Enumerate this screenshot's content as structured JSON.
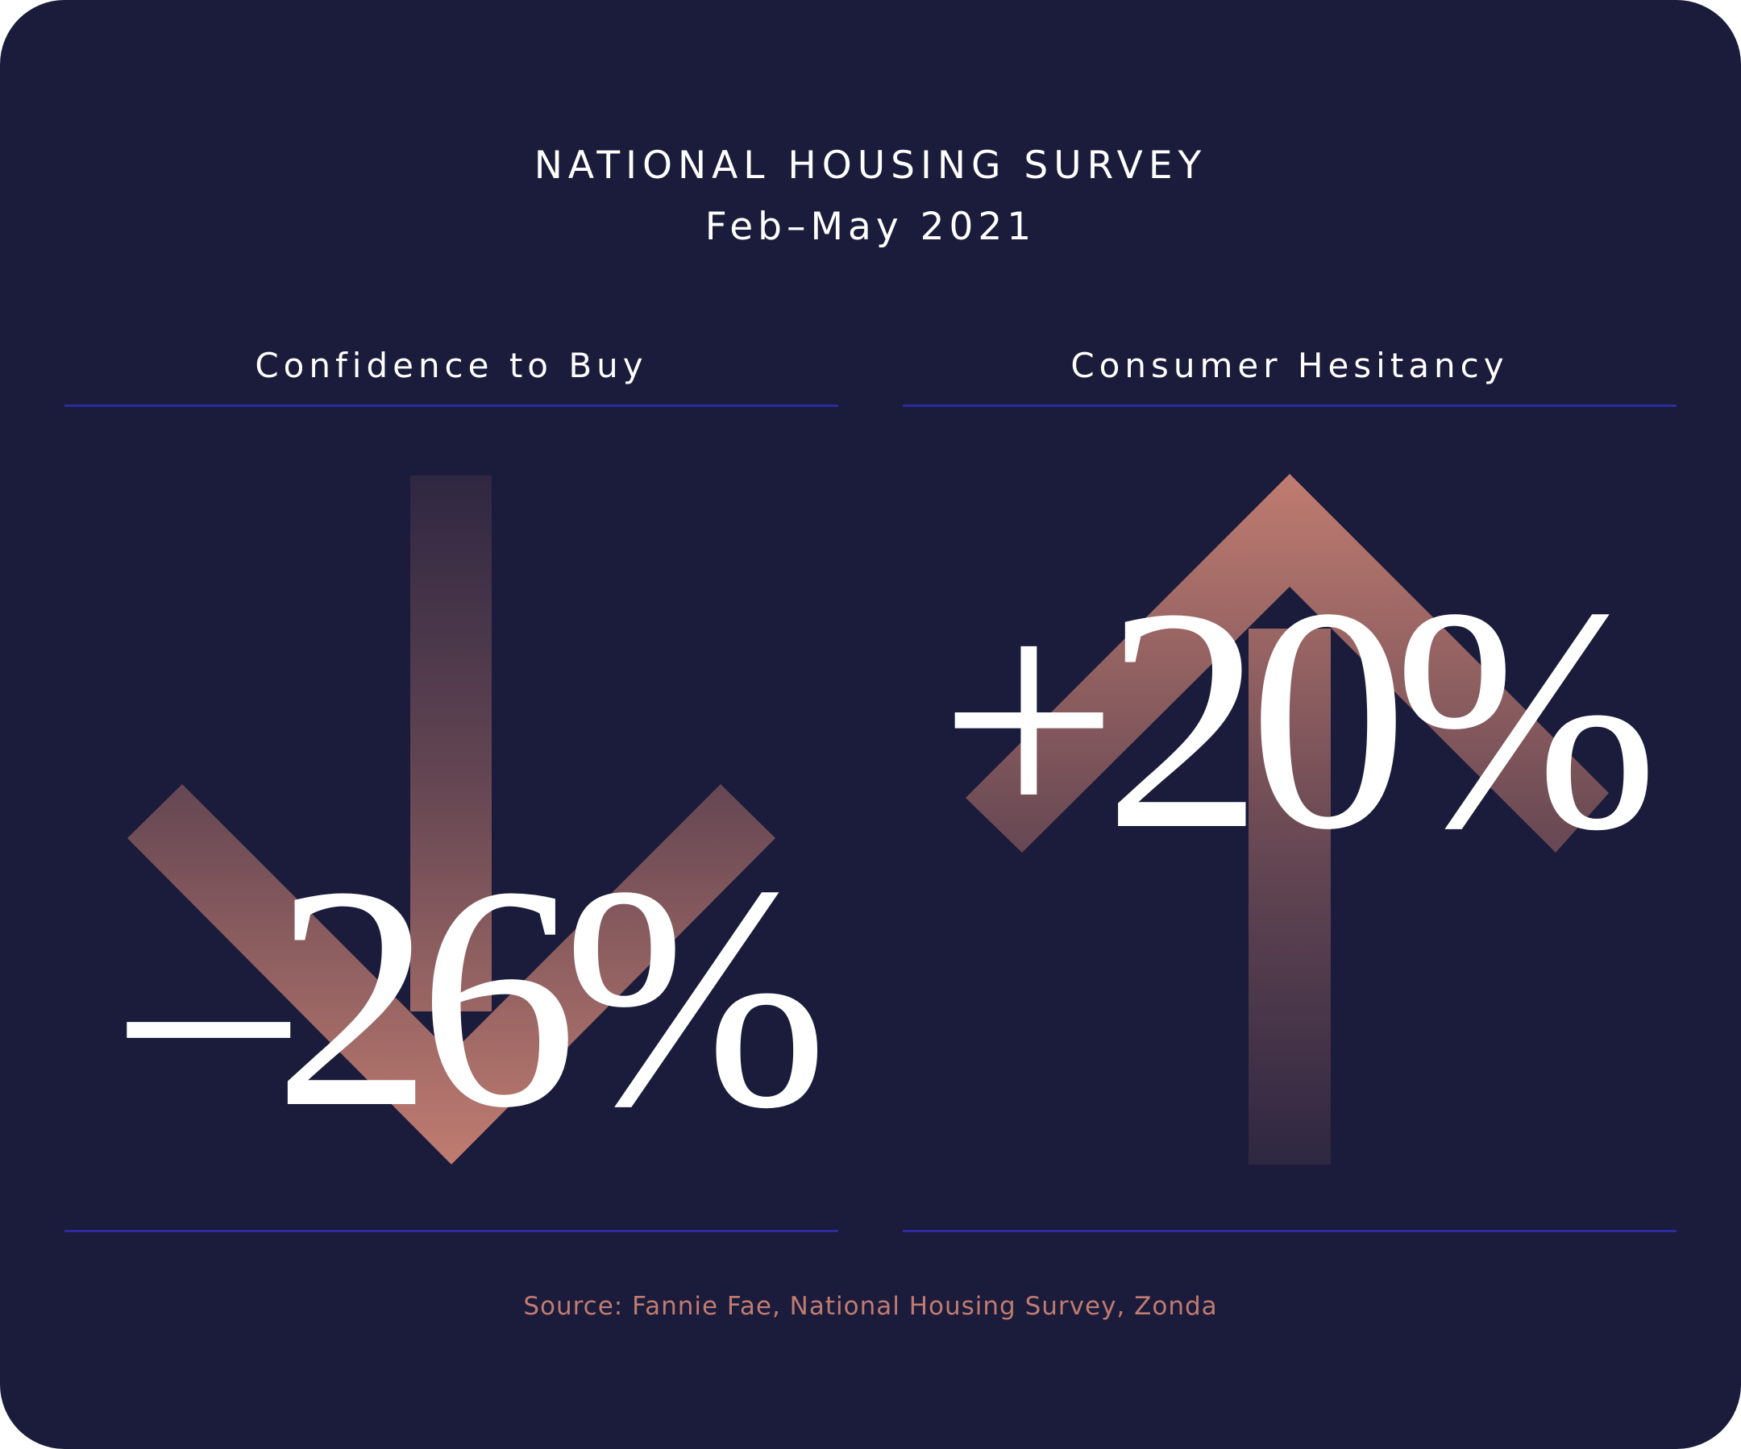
{
  "header": {
    "title": "NATIONAL HOUSING SURVEY",
    "subtitle": "Feb–May 2021"
  },
  "panels": [
    {
      "label": "Confidence to Buy",
      "value": "–26%",
      "direction": "down",
      "icon": "arrow-down-icon"
    },
    {
      "label": "Consumer Hesitancy",
      "value": "+20%",
      "direction": "up",
      "icon": "arrow-up-icon"
    }
  ],
  "footer": {
    "source": "Source: Fannie Fae, National Housing Survey, Zonda"
  },
  "colors": {
    "background": "#1b1b3b",
    "rule": "#2c2ca0",
    "accent": "#c07c70",
    "text": "#ffffff"
  }
}
